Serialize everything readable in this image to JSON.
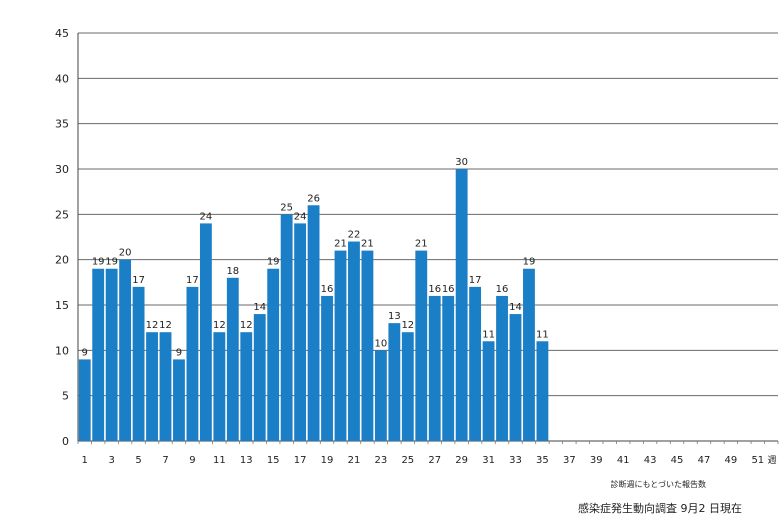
{
  "chart_data": {
    "type": "bar",
    "x_axis_end_label": "週",
    "x_note": "診断週にもとづいた報告数",
    "source": "感染症発生動向調査 9月2 日現在",
    "ylim": [
      0,
      45
    ],
    "y_ticks": [
      0,
      5,
      10,
      15,
      20,
      25,
      30,
      35,
      40,
      45
    ],
    "grid": true,
    "week_count": 52,
    "x_tick_labels": [
      "1",
      "3",
      "5",
      "7",
      "9",
      "11",
      "13",
      "15",
      "17",
      "19",
      "21",
      "23",
      "25",
      "27",
      "29",
      "31",
      "33",
      "35",
      "37",
      "39",
      "41",
      "43",
      "45",
      "47",
      "49",
      "51"
    ],
    "weeks": [
      1,
      2,
      3,
      4,
      5,
      6,
      7,
      8,
      9,
      10,
      11,
      12,
      13,
      14,
      15,
      16,
      17,
      18,
      19,
      20,
      21,
      22,
      23,
      24,
      25,
      26,
      27,
      28,
      29,
      30,
      31,
      32,
      33,
      34,
      35
    ],
    "values": [
      9,
      19,
      19,
      20,
      17,
      12,
      12,
      9,
      17,
      24,
      12,
      18,
      12,
      14,
      19,
      25,
      24,
      26,
      16,
      21,
      22,
      21,
      10,
      13,
      12,
      21,
      16,
      16,
      30,
      17,
      11,
      16,
      14,
      19,
      11
    ],
    "bar_color": "#1a7fc6"
  }
}
